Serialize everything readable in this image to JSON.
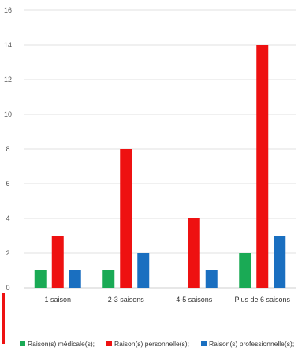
{
  "chart_data": {
    "type": "bar",
    "title": "",
    "xlabel": "",
    "ylabel": "",
    "ylim": [
      0,
      16
    ],
    "yticks": [
      0,
      2,
      4,
      6,
      8,
      10,
      12,
      14,
      16
    ],
    "grid": true,
    "legend_position": "bottom",
    "categories": [
      "1 saison",
      "2-3 saisons",
      "4-5 saisons",
      "Plus de 6 saisons"
    ],
    "series": [
      {
        "name": "Raison(s) médicale(s);",
        "color": "#1aaa55",
        "values": [
          1,
          1,
          0,
          2
        ]
      },
      {
        "name": "Raison(s) personnelle(s);",
        "color": "#ee1111",
        "values": [
          3,
          8,
          4,
          14
        ]
      },
      {
        "name": "Raison(s) professionnelle(s);",
        "color": "#1a6fc0",
        "values": [
          1,
          2,
          1,
          3
        ]
      }
    ]
  }
}
